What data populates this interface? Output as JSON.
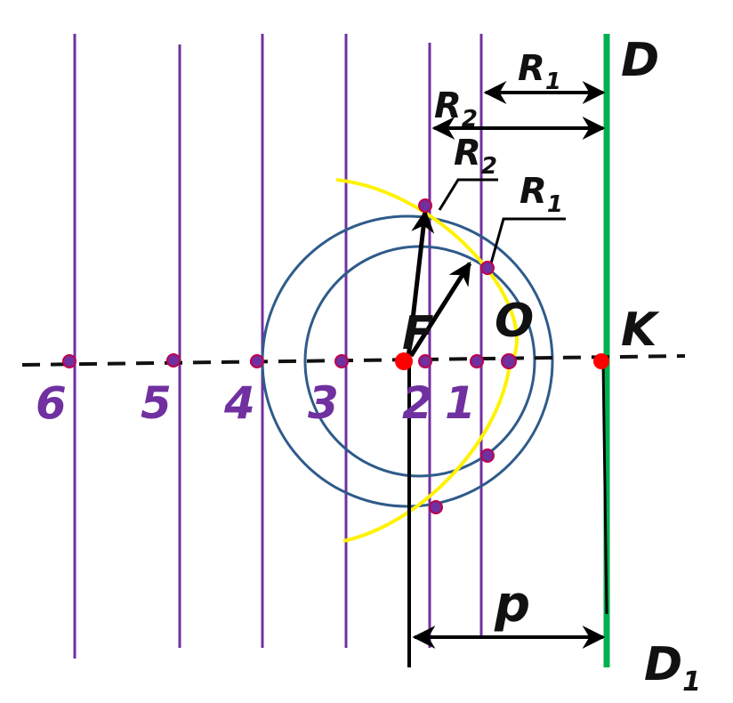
{
  "labels": {
    "directrix_top": "D",
    "directrix_bottom_main": "D",
    "directrix_bottom_sub": "1",
    "focus": "F",
    "vertex": "O",
    "axis_point": "K",
    "param": "p",
    "r1_letter": "R",
    "r1_sub": "1",
    "r2_letter": "R",
    "r2_sub": "2"
  },
  "numbers": [
    "6",
    "5",
    "4",
    "3",
    "2",
    "1"
  ],
  "colors": {
    "directrix": "#00B050",
    "parallels": "#7030A0",
    "circles": "#2F5B8A",
    "parabola": "#FFF200",
    "focus_point": "#FF0000",
    "points": "#7030A0",
    "arrows": "#000000"
  }
}
